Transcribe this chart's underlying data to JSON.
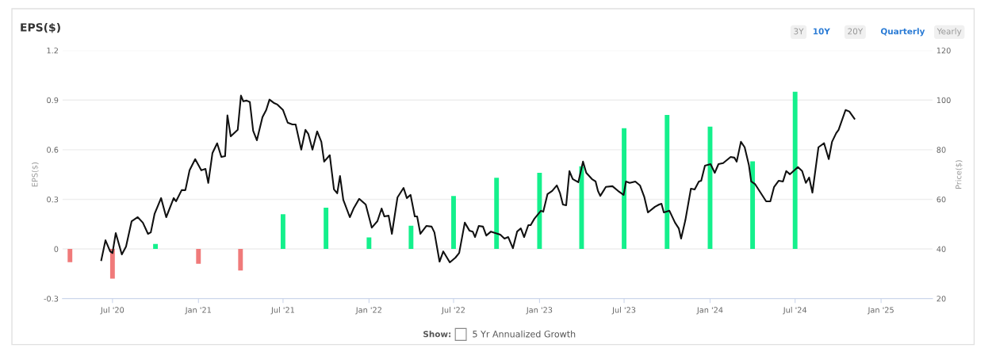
{
  "chart_data": {
    "type": "bar",
    "title": "EPS($)",
    "ylabel": "EPS($)",
    "y2label": "Price($)",
    "annotations": [
      "3Y",
      "10Y",
      "20Y",
      "Quarterly",
      "Yearly",
      "Show:",
      "5 Yr Annualized Growth"
    ],
    "xlim": [
      "2020-03-16",
      "2025-04-21"
    ],
    "xticks": [
      {
        "value": "2020-07-01",
        "label": "Jul '20"
      },
      {
        "value": "2021-01-01",
        "label": "Jan '21"
      },
      {
        "value": "2021-07-01",
        "label": "Jul '21"
      },
      {
        "value": "2022-01-01",
        "label": "Jan '22"
      },
      {
        "value": "2022-07-01",
        "label": "Jul '22"
      },
      {
        "value": "2023-01-01",
        "label": "Jan '23"
      },
      {
        "value": "2023-07-01",
        "label": "Jul '23"
      },
      {
        "value": "2024-01-01",
        "label": "Jan '24"
      },
      {
        "value": "2024-07-01",
        "label": "Jul '24"
      },
      {
        "value": "2025-01-01",
        "label": "Jan '25"
      }
    ],
    "ylim": [
      -0.3,
      1.2
    ],
    "yticks": [
      -0.3,
      0,
      0.3,
      0.6,
      0.9,
      1.2
    ],
    "y2lim": [
      20,
      120
    ],
    "y2ticks": [
      20,
      40,
      60,
      80,
      100,
      120
    ],
    "grid": "y",
    "legend": false,
    "series": [
      {
        "x": [
          "2020-04-01",
          "2020-07-01",
          "2020-10-01",
          "2021-01-01",
          "2021-04-01",
          "2021-07-01",
          "2021-10-01",
          "2022-01-01",
          "2022-04-01",
          "2022-07-01",
          "2022-10-01",
          "2023-01-01",
          "2023-04-01",
          "2023-07-01",
          "2023-10-01",
          "2024-01-01",
          "2024-04-01",
          "2024-07-01"
        ],
        "values": [
          -0.08,
          -0.18,
          0.03,
          -0.09,
          -0.13,
          0.21,
          0.25,
          0.07,
          0.14,
          0.32,
          0.43,
          0.46,
          0.5,
          0.73,
          0.81,
          0.74,
          0.53,
          0.95
        ],
        "colors": [
          "#f07a7a",
          "#f07a7a",
          "#14f08c",
          "#f07a7a",
          "#f07a7a",
          "#14f08c",
          "#14f08c",
          "#14f08c",
          "#14f08c",
          "#14f08c",
          "#14f08c",
          "#14f08c",
          "#14f08c",
          "#14f08c",
          "#14f08c",
          "#14f08c",
          "#14f08c",
          "#14f08c"
        ]
      },
      {
        "type": "line",
        "axis": "y2",
        "color": "#111111",
        "x": [
          "2020-06-07",
          "2020-06-16",
          "2020-06-26",
          "2020-07-01",
          "2020-07-08",
          "2020-07-21",
          "2020-07-30",
          "2020-08-11",
          "2020-08-24",
          "2020-09-04",
          "2020-09-15",
          "2020-09-21",
          "2020-09-29",
          "2020-10-13",
          "2020-10-24",
          "2020-11-09",
          "2020-11-14",
          "2020-11-26",
          "2020-12-04",
          "2020-12-13",
          "2020-12-25",
          "2021-01-07",
          "2021-01-16",
          "2021-01-22",
          "2021-01-31",
          "2021-02-10",
          "2021-02-19",
          "2021-02-27",
          "2021-03-04",
          "2021-03-11",
          "2021-03-26",
          "2021-04-02",
          "2021-04-07",
          "2021-04-14",
          "2021-04-21",
          "2021-04-28",
          "2021-05-06",
          "2021-05-18",
          "2021-05-26",
          "2021-06-02",
          "2021-06-11",
          "2021-06-19",
          "2021-07-01",
          "2021-07-11",
          "2021-07-21",
          "2021-07-28",
          "2021-08-09",
          "2021-08-18",
          "2021-08-24",
          "2021-09-02",
          "2021-09-12",
          "2021-09-21",
          "2021-09-27",
          "2021-10-09",
          "2021-10-18",
          "2021-10-25",
          "2021-10-31",
          "2021-11-07",
          "2021-11-21",
          "2021-11-29",
          "2021-12-11",
          "2021-12-25",
          "2022-01-07",
          "2022-01-19",
          "2022-01-28",
          "2022-02-03",
          "2022-02-12",
          "2022-02-19",
          "2022-03-03",
          "2022-03-16",
          "2022-03-23",
          "2022-03-31",
          "2022-04-09",
          "2022-04-14",
          "2022-04-21",
          "2022-05-04",
          "2022-05-15",
          "2022-05-21",
          "2022-06-01",
          "2022-06-09",
          "2022-06-23",
          "2022-07-05",
          "2022-07-13",
          "2022-07-25",
          "2022-08-04",
          "2022-08-11",
          "2022-08-16",
          "2022-08-24",
          "2022-09-02",
          "2022-09-09",
          "2022-09-19",
          "2022-10-09",
          "2022-10-18",
          "2022-10-26",
          "2022-11-05",
          "2022-11-14",
          "2022-11-22",
          "2022-11-29",
          "2022-12-08",
          "2022-12-13",
          "2022-12-21",
          "2023-01-04",
          "2023-01-09",
          "2023-01-18",
          "2023-01-28",
          "2023-02-07",
          "2023-02-14",
          "2023-02-20",
          "2023-02-27",
          "2023-03-06",
          "2023-03-13",
          "2023-03-25",
          "2023-04-04",
          "2023-04-11",
          "2023-04-23",
          "2023-05-01",
          "2023-05-06",
          "2023-05-11",
          "2023-05-23",
          "2023-06-06",
          "2023-06-18",
          "2023-06-30",
          "2023-07-05",
          "2023-07-13",
          "2023-07-25",
          "2023-08-04",
          "2023-08-13",
          "2023-08-21",
          "2023-09-05",
          "2023-09-14",
          "2023-09-19",
          "2023-09-24",
          "2023-10-06",
          "2023-10-18",
          "2023-10-26",
          "2023-10-31",
          "2023-11-09",
          "2023-11-21",
          "2023-11-29",
          "2023-12-08",
          "2023-12-13",
          "2023-12-21",
          "2024-01-02",
          "2024-01-11",
          "2024-01-19",
          "2024-01-29",
          "2024-02-14",
          "2024-02-22",
          "2024-02-27",
          "2024-03-07",
          "2024-03-15",
          "2024-03-24",
          "2024-03-29",
          "2024-04-06",
          "2024-04-18",
          "2024-04-30",
          "2024-05-09",
          "2024-05-17",
          "2024-05-27",
          "2024-06-05",
          "2024-06-12",
          "2024-06-20",
          "2024-07-07",
          "2024-07-16",
          "2024-07-24",
          "2024-07-31",
          "2024-08-07",
          "2024-08-20",
          "2024-09-01",
          "2024-09-11",
          "2024-09-18",
          "2024-09-27",
          "2024-10-02",
          "2024-10-17",
          "2024-10-25",
          "2024-11-05"
        ],
        "values": [
          35.5,
          43.5,
          39.0,
          38.4,
          46.4,
          37.8,
          41.0,
          51.2,
          52.8,
          50.6,
          46.1,
          46.7,
          54.1,
          60.5,
          52.8,
          60.5,
          59.2,
          63.7,
          63.7,
          71.7,
          76.2,
          71.7,
          72.3,
          66.6,
          78.7,
          82.6,
          77.1,
          77.4,
          93.8,
          85.4,
          88.0,
          101.8,
          99.5,
          99.8,
          99.2,
          87.7,
          83.8,
          93.1,
          96.0,
          100.2,
          98.9,
          98.2,
          96.0,
          90.9,
          90.2,
          90.2,
          80.0,
          88.0,
          86.4,
          80.0,
          87.4,
          83.2,
          75.2,
          77.8,
          64.0,
          62.4,
          69.4,
          59.8,
          52.8,
          56.3,
          60.2,
          57.9,
          48.6,
          51.2,
          56.3,
          53.1,
          53.4,
          46.1,
          60.8,
          64.6,
          60.5,
          61.8,
          53.1,
          53.1,
          46.1,
          49.3,
          49.0,
          46.7,
          34.9,
          39.0,
          34.6,
          36.5,
          38.4,
          50.6,
          47.4,
          47.0,
          44.8,
          49.3,
          49.0,
          45.4,
          47.0,
          45.8,
          44.2,
          44.8,
          40.3,
          47.0,
          48.3,
          44.8,
          49.6,
          49.6,
          52.2,
          55.4,
          55.0,
          62.1,
          63.4,
          65.6,
          62.4,
          57.9,
          57.6,
          71.4,
          68.2,
          66.9,
          75.2,
          70.7,
          68.2,
          67.2,
          63.4,
          61.4,
          65.0,
          65.3,
          63.4,
          61.8,
          67.2,
          66.6,
          67.2,
          65.6,
          61.1,
          54.7,
          57.0,
          57.9,
          58.2,
          54.7,
          55.4,
          50.6,
          48.3,
          44.2,
          51.5,
          64.3,
          64.0,
          67.2,
          67.5,
          73.6,
          74.2,
          70.7,
          74.2,
          74.6,
          77.1,
          76.8,
          75.2,
          83.2,
          81.0,
          73.9,
          67.2,
          66.2,
          62.7,
          59.2,
          59.2,
          65.0,
          67.5,
          67.2,
          71.4,
          70.1,
          73.0,
          71.4,
          66.6,
          68.8,
          62.7,
          81.0,
          82.6,
          76.2,
          83.2,
          86.7,
          88.0,
          96.0,
          95.4,
          92.5
        ]
      }
    ]
  }
}
